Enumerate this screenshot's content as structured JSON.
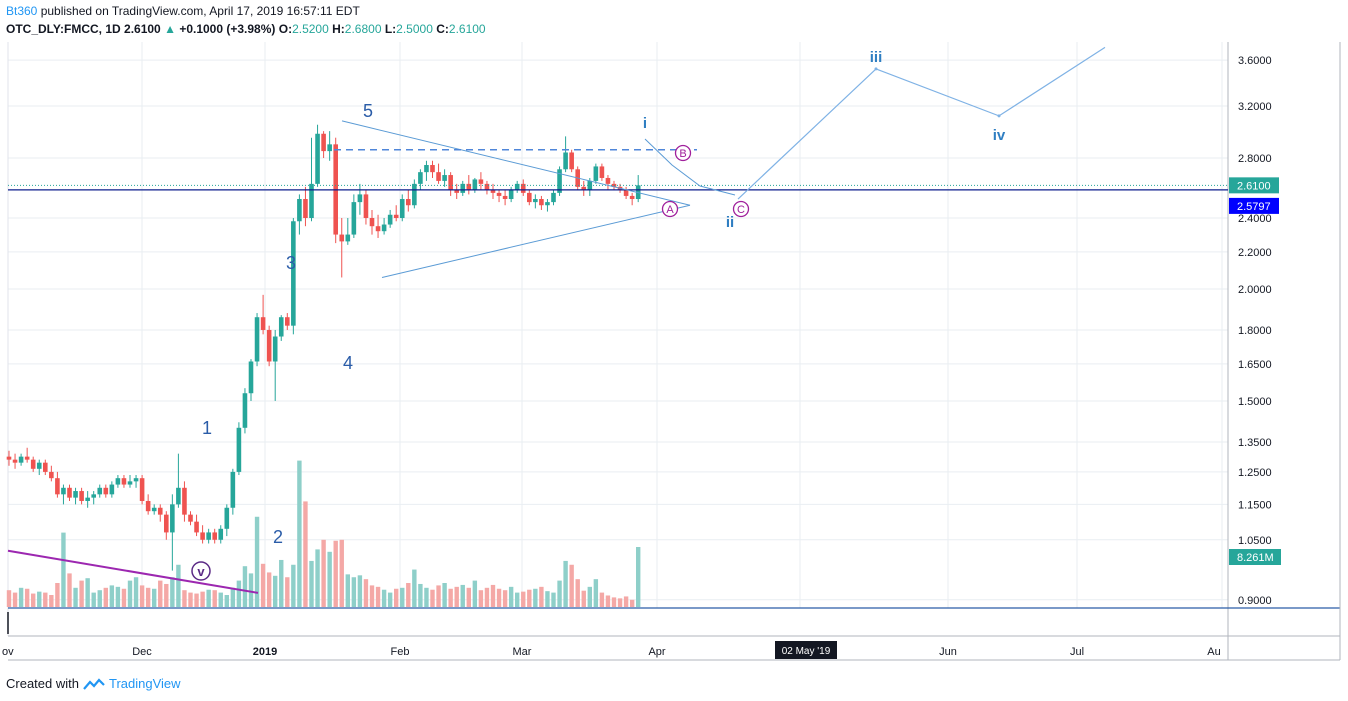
{
  "header": {
    "publisher": "Bt360",
    "published_text": "published on TradingView.com, April 17, 2019 16:57:11 EDT",
    "symbol": "OTC_DLY:FMCC, 1D",
    "last": "2.6100",
    "change_arrow": "▲",
    "change": "+0.1000 (+3.98%)",
    "o_label": "O:",
    "o_value": "2.5200",
    "h_label": "H:",
    "h_value": "2.6800",
    "l_label": "L:",
    "l_value": "2.5000",
    "c_label": "C:",
    "c_value": "2.6100"
  },
  "footer": {
    "created_with": "Created with",
    "brand": "TradingView"
  },
  "colors": {
    "up": "#26a69a",
    "down": "#ef5350",
    "up_volume": "#8ecfc9",
    "down_volume": "#f4a8a6",
    "wave_label": "#2a5ca8",
    "projection": "#5b9bd5",
    "abc": "#a0209c",
    "channel": "#9c27b0",
    "price_tag": "#26a69a",
    "level_tag": "#0000ff",
    "grid": "#e9eef2"
  },
  "chart_data": {
    "type": "candlestick",
    "y_scale": "log",
    "ylim": [
      0.85,
      3.8
    ],
    "y_ticks": [
      "3.6000",
      "3.2000",
      "2.8000",
      "2.4000",
      "2.2000",
      "2.0000",
      "1.8000",
      "1.6500",
      "1.5000",
      "1.3500",
      "1.2500",
      "1.1500",
      "1.0500",
      "0.9000"
    ],
    "x_ticks": [
      "ov",
      "Dec",
      "2019",
      "Feb",
      "Mar",
      "Apr",
      "Jun",
      "Jul",
      "Au"
    ],
    "crosshair_date": "02 May '19",
    "last_price_tag": "2.6100",
    "level_tag": "2.5797",
    "volume_tag": "8.261M",
    "ohlc": [
      [
        1.3,
        1.32,
        1.27,
        1.29
      ],
      [
        1.29,
        1.31,
        1.26,
        1.28
      ],
      [
        1.28,
        1.31,
        1.27,
        1.3
      ],
      [
        1.3,
        1.33,
        1.28,
        1.29
      ],
      [
        1.29,
        1.3,
        1.25,
        1.26
      ],
      [
        1.26,
        1.29,
        1.24,
        1.28
      ],
      [
        1.28,
        1.29,
        1.24,
        1.25
      ],
      [
        1.25,
        1.27,
        1.22,
        1.23
      ],
      [
        1.23,
        1.25,
        1.17,
        1.18
      ],
      [
        1.18,
        1.21,
        1.15,
        1.2
      ],
      [
        1.2,
        1.21,
        1.16,
        1.17
      ],
      [
        1.17,
        1.2,
        1.15,
        1.19
      ],
      [
        1.19,
        1.2,
        1.15,
        1.16
      ],
      [
        1.16,
        1.19,
        1.14,
        1.17
      ],
      [
        1.17,
        1.19,
        1.15,
        1.18
      ],
      [
        1.18,
        1.21,
        1.17,
        1.2
      ],
      [
        1.2,
        1.21,
        1.17,
        1.18
      ],
      [
        1.18,
        1.22,
        1.17,
        1.21
      ],
      [
        1.21,
        1.24,
        1.2,
        1.23
      ],
      [
        1.23,
        1.24,
        1.2,
        1.21
      ],
      [
        1.21,
        1.24,
        1.2,
        1.22
      ],
      [
        1.22,
        1.24,
        1.2,
        1.23
      ],
      [
        1.23,
        1.24,
        1.15,
        1.16
      ],
      [
        1.16,
        1.18,
        1.12,
        1.13
      ],
      [
        1.13,
        1.15,
        1.12,
        1.14
      ],
      [
        1.14,
        1.15,
        1.1,
        1.12
      ],
      [
        1.12,
        1.13,
        1.05,
        1.07
      ],
      [
        1.07,
        1.18,
        0.97,
        1.15
      ],
      [
        1.15,
        1.31,
        1.14,
        1.2
      ],
      [
        1.2,
        1.22,
        1.1,
        1.12
      ],
      [
        1.12,
        1.13,
        1.09,
        1.1
      ],
      [
        1.1,
        1.12,
        1.06,
        1.07
      ],
      [
        1.07,
        1.09,
        1.04,
        1.05
      ],
      [
        1.05,
        1.08,
        1.04,
        1.07
      ],
      [
        1.07,
        1.08,
        1.04,
        1.05
      ],
      [
        1.05,
        1.09,
        1.04,
        1.08
      ],
      [
        1.08,
        1.15,
        1.06,
        1.14
      ],
      [
        1.14,
        1.26,
        1.12,
        1.25
      ],
      [
        1.25,
        1.42,
        1.24,
        1.4
      ],
      [
        1.4,
        1.55,
        1.38,
        1.53
      ],
      [
        1.53,
        1.67,
        1.5,
        1.66
      ],
      [
        1.66,
        1.88,
        1.64,
        1.86
      ],
      [
        1.86,
        1.97,
        1.78,
        1.8
      ],
      [
        1.8,
        1.82,
        1.64,
        1.66
      ],
      [
        1.66,
        1.8,
        1.5,
        1.77
      ],
      [
        1.77,
        1.87,
        1.75,
        1.86
      ],
      [
        1.86,
        1.88,
        1.8,
        1.82
      ],
      [
        1.82,
        2.4,
        1.78,
        2.38
      ],
      [
        2.38,
        2.55,
        2.3,
        2.52
      ],
      [
        2.52,
        2.6,
        2.35,
        2.4
      ],
      [
        2.4,
        2.95,
        2.38,
        2.62
      ],
      [
        2.62,
        3.05,
        2.6,
        2.98
      ],
      [
        2.98,
        3.0,
        2.8,
        2.85
      ],
      [
        2.85,
        3.0,
        2.78,
        2.9
      ],
      [
        2.9,
        2.95,
        2.25,
        2.3
      ],
      [
        2.3,
        2.4,
        2.06,
        2.26
      ],
      [
        2.26,
        2.4,
        2.24,
        2.3
      ],
      [
        2.3,
        2.55,
        2.28,
        2.5
      ],
      [
        2.5,
        2.62,
        2.42,
        2.55
      ],
      [
        2.55,
        2.58,
        2.36,
        2.4
      ],
      [
        2.4,
        2.45,
        2.3,
        2.35
      ],
      [
        2.35,
        2.42,
        2.28,
        2.32
      ],
      [
        2.32,
        2.4,
        2.3,
        2.36
      ],
      [
        2.36,
        2.45,
        2.34,
        2.42
      ],
      [
        2.42,
        2.48,
        2.38,
        2.4
      ],
      [
        2.4,
        2.55,
        2.38,
        2.52
      ],
      [
        2.52,
        2.58,
        2.44,
        2.48
      ],
      [
        2.48,
        2.65,
        2.46,
        2.62
      ],
      [
        2.62,
        2.72,
        2.58,
        2.7
      ],
      [
        2.7,
        2.78,
        2.64,
        2.75
      ],
      [
        2.75,
        2.78,
        2.66,
        2.7
      ],
      [
        2.7,
        2.76,
        2.62,
        2.64
      ],
      [
        2.64,
        2.72,
        2.6,
        2.68
      ],
      [
        2.68,
        2.7,
        2.54,
        2.58
      ],
      [
        2.58,
        2.62,
        2.52,
        2.56
      ],
      [
        2.56,
        2.64,
        2.54,
        2.62
      ],
      [
        2.62,
        2.68,
        2.55,
        2.58
      ],
      [
        2.58,
        2.66,
        2.56,
        2.65
      ],
      [
        2.65,
        2.7,
        2.58,
        2.62
      ],
      [
        2.62,
        2.64,
        2.55,
        2.58
      ],
      [
        2.58,
        2.62,
        2.52,
        2.56
      ],
      [
        2.56,
        2.58,
        2.5,
        2.54
      ],
      [
        2.54,
        2.58,
        2.48,
        2.52
      ],
      [
        2.52,
        2.6,
        2.5,
        2.58
      ],
      [
        2.58,
        2.64,
        2.56,
        2.62
      ],
      [
        2.62,
        2.65,
        2.54,
        2.56
      ],
      [
        2.56,
        2.58,
        2.48,
        2.5
      ],
      [
        2.5,
        2.55,
        2.46,
        2.52
      ],
      [
        2.52,
        2.54,
        2.45,
        2.48
      ],
      [
        2.48,
        2.52,
        2.44,
        2.5
      ],
      [
        2.5,
        2.58,
        2.48,
        2.56
      ],
      [
        2.56,
        2.74,
        2.54,
        2.72
      ],
      [
        2.72,
        2.96,
        2.7,
        2.84
      ],
      [
        2.84,
        2.86,
        2.7,
        2.72
      ],
      [
        2.72,
        2.74,
        2.58,
        2.6
      ],
      [
        2.6,
        2.64,
        2.54,
        2.58
      ],
      [
        2.58,
        2.66,
        2.54,
        2.64
      ],
      [
        2.64,
        2.76,
        2.62,
        2.74
      ],
      [
        2.74,
        2.76,
        2.64,
        2.66
      ],
      [
        2.66,
        2.68,
        2.58,
        2.62
      ],
      [
        2.62,
        2.64,
        2.58,
        2.6
      ],
      [
        2.6,
        2.62,
        2.56,
        2.58
      ],
      [
        2.58,
        2.6,
        2.52,
        2.54
      ],
      [
        2.54,
        2.56,
        2.48,
        2.52
      ],
      [
        2.52,
        2.68,
        2.5,
        2.61
      ]
    ],
    "volume": [
      0.35,
      0.3,
      0.4,
      0.38,
      0.28,
      0.32,
      0.3,
      0.25,
      0.5,
      1.55,
      0.7,
      0.4,
      0.55,
      0.6,
      0.3,
      0.35,
      0.4,
      0.45,
      0.42,
      0.38,
      0.55,
      0.62,
      0.45,
      0.4,
      0.38,
      0.55,
      0.48,
      0.62,
      0.88,
      0.35,
      0.3,
      0.28,
      0.32,
      0.36,
      0.35,
      0.3,
      0.25,
      0.4,
      0.55,
      0.85,
      0.7,
      1.88,
      0.9,
      0.72,
      0.65,
      0.98,
      0.62,
      0.88,
      3.05,
      2.2,
      0.96,
      1.2,
      1.4,
      1.15,
      1.38,
      1.4,
      0.68,
      0.62,
      0.66,
      0.58,
      0.45,
      0.42,
      0.36,
      0.3,
      0.38,
      0.4,
      0.5,
      0.78,
      0.48,
      0.4,
      0.36,
      0.45,
      0.5,
      0.38,
      0.42,
      0.46,
      0.4,
      0.55,
      0.35,
      0.4,
      0.46,
      0.38,
      0.35,
      0.42,
      0.3,
      0.32,
      0.36,
      0.38,
      0.42,
      0.33,
      0.3,
      0.55,
      0.96,
      0.88,
      0.58,
      0.34,
      0.42,
      0.58,
      0.3,
      0.24,
      0.2,
      0.18,
      0.22,
      0.15,
      1.25
    ],
    "wave_labels": [
      "1",
      "2",
      "3",
      "4",
      "5",
      "v",
      "i",
      "ii",
      "iii",
      "iv",
      "A",
      "B",
      "C"
    ],
    "triangle": {
      "apex_price": 2.48,
      "upper_start_price": 3.08,
      "lower_start_price": 2.06
    },
    "resistance_price": 2.86,
    "projection_path_prices": [
      2.52,
      3.52,
      3.12,
      3.72
    ],
    "channel_prices": [
      1.0,
      0.935
    ]
  }
}
